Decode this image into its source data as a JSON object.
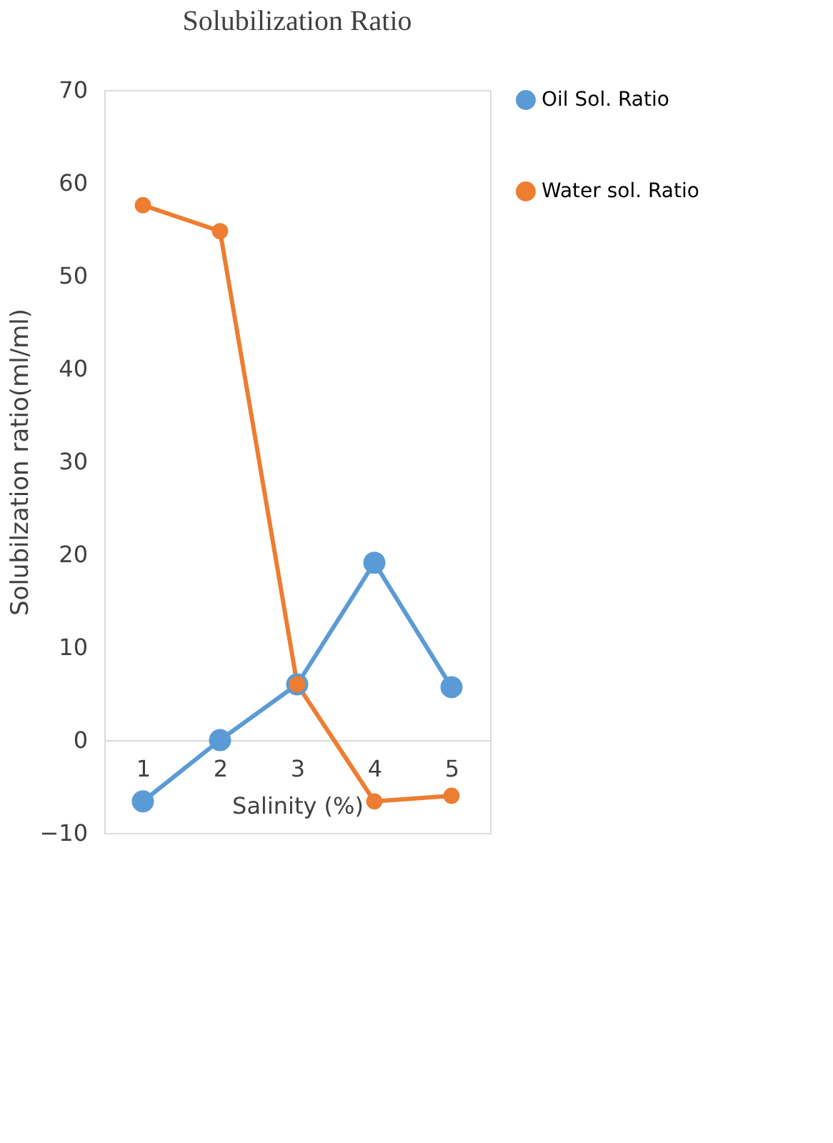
{
  "chart_data": {
    "type": "line",
    "title": "Solubilization Ratio",
    "xlabel": "Salinity (%)",
    "ylabel": "Solubilzation ratio(ml/ml)",
    "categories": [
      "1",
      "2",
      "3",
      "4",
      "5"
    ],
    "series": [
      {
        "name": "Oil Sol. Ratio",
        "color": "#5b9bd5",
        "values": [
          -6.6,
          0,
          6,
          19.1,
          5.7
        ]
      },
      {
        "name": "Water sol. Ratio",
        "color": "#ed7d31",
        "values": [
          57.6,
          54.8,
          6,
          -6.6,
          -6
        ]
      }
    ],
    "ylim": [
      -10,
      70
    ],
    "yticks": [
      -10,
      0,
      10,
      20,
      30,
      40,
      50,
      60,
      70
    ],
    "grid": false,
    "legend": "right",
    "marker": "circle",
    "line_style": "solid"
  }
}
